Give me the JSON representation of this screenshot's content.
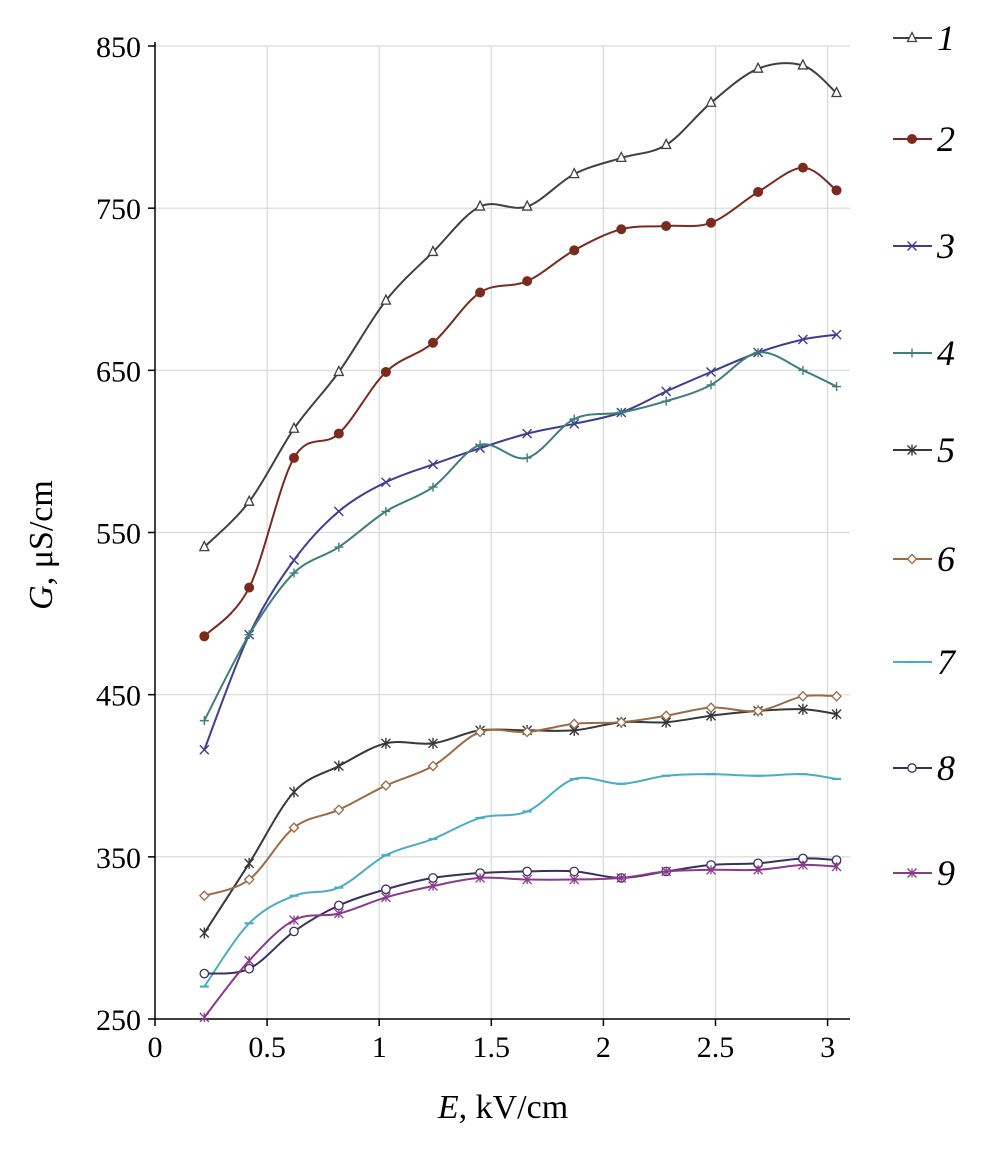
{
  "chart_data": {
    "type": "line",
    "title": "",
    "xlabel": {
      "var": "E",
      "unit": ", kV/cm"
    },
    "ylabel": {
      "var": "G",
      "unit": ", μS/cm"
    },
    "xlim": [
      0,
      3.1
    ],
    "ylim": [
      250,
      850
    ],
    "xticks": [
      0,
      0.5,
      1,
      1.5,
      2,
      2.5,
      3
    ],
    "xtick_labels": [
      "0",
      "0.5",
      "1",
      "1.5",
      "2",
      "2.5",
      "3"
    ],
    "yticks": [
      250,
      350,
      450,
      550,
      650,
      750,
      850
    ],
    "ytick_labels": [
      "250",
      "350",
      "450",
      "550",
      "650",
      "750",
      "850"
    ],
    "grid": true,
    "legend_position": "right",
    "x": [
      0.22,
      0.42,
      0.62,
      0.82,
      1.03,
      1.24,
      1.45,
      1.66,
      1.87,
      2.08,
      2.28,
      2.48,
      2.69,
      2.89,
      3.04
    ],
    "series": [
      {
        "name": "1",
        "color": "#404040",
        "marker": "triangle",
        "values": [
          541,
          569,
          614,
          649,
          693,
          723,
          751,
          751,
          771,
          781,
          789,
          815,
          836,
          838,
          821
        ]
      },
      {
        "name": "2",
        "color": "#7b2b1e",
        "marker": "dot",
        "values": [
          486,
          516,
          596,
          611,
          649,
          667,
          698,
          705,
          724,
          737,
          739,
          741,
          760,
          775,
          761
        ]
      },
      {
        "name": "3",
        "color": "#3f3d8f",
        "marker": "x",
        "values": [
          416,
          487,
          533,
          563,
          581,
          592,
          602,
          611,
          617,
          624,
          637,
          649,
          661,
          669,
          672
        ]
      },
      {
        "name": "4",
        "color": "#3f7f7a",
        "marker": "plus",
        "values": [
          434,
          487,
          525,
          541,
          563,
          578,
          604,
          596,
          620,
          624,
          631,
          641,
          661,
          650,
          640
        ]
      },
      {
        "name": "5",
        "color": "#383838",
        "marker": "star",
        "values": [
          303,
          346,
          390,
          406,
          420,
          420,
          428,
          428,
          428,
          433,
          433,
          437,
          440,
          441,
          438
        ]
      },
      {
        "name": "6",
        "color": "#9c6a45",
        "marker": "diamond",
        "values": [
          326,
          336,
          368,
          379,
          394,
          406,
          427,
          427,
          432,
          433,
          437,
          442,
          440,
          449,
          449
        ]
      },
      {
        "name": "7",
        "color": "#4bacc6",
        "marker": "dash",
        "values": [
          270,
          309,
          326,
          331,
          351,
          361,
          374,
          378,
          398,
          395,
          400,
          401,
          400,
          401,
          398
        ]
      },
      {
        "name": "8",
        "color": "#3b2f5f",
        "marker": "circle",
        "values": [
          278,
          281,
          304,
          320,
          330,
          337,
          340,
          341,
          341,
          337,
          341,
          345,
          346,
          349,
          348
        ]
      },
      {
        "name": "9",
        "color": "#8a3a8a",
        "marker": "asterisk",
        "values": [
          251,
          286,
          311,
          315,
          325,
          332,
          337,
          336,
          336,
          337,
          341,
          342,
          342,
          345,
          344
        ]
      }
    ]
  }
}
